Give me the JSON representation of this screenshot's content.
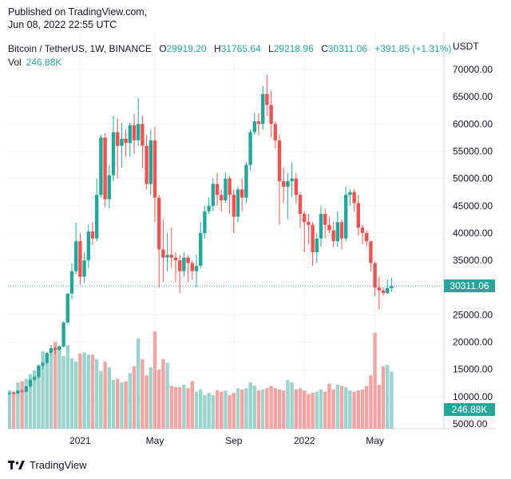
{
  "header": {
    "published": "Published on TradingView.com,",
    "timestamp": "Jun 08, 2022 22:55 UTC"
  },
  "legend": {
    "symbol": "Bitcoin / TetherUS, 1W, BINANCE",
    "o_label": "O",
    "o_value": "29919.20",
    "h_label": "H",
    "h_value": "31765.64",
    "l_label": "L",
    "l_value": "29218.96",
    "c_label": "C",
    "c_value": "30311.06",
    "change": "+391.85 (+1.31%)",
    "vol_label": "Vol",
    "vol_value": "246.88K"
  },
  "axis_unit": "USDT",
  "price_label": "30311.06",
  "volume_label": "246.88K",
  "brand": {
    "name": "TradingView",
    "logo": "tradingview-logo"
  },
  "colors": {
    "up": "#26a69a",
    "down": "#ef5350",
    "vol_up": "#9bd3cd",
    "vol_down": "#f4a5a3"
  },
  "chart_data": {
    "type": "candlestick",
    "interval": "1W",
    "ylim": [
      5000,
      70000
    ],
    "y_ticks": [
      "70000.00",
      "65000.00",
      "60000.00",
      "55000.00",
      "50000.00",
      "45000.00",
      "40000.00",
      "35000.00",
      "30000.00",
      "25000.00",
      "20000.00",
      "15000.00",
      "10000.00",
      "5000.00"
    ],
    "x_ticks": [
      "2021",
      "May",
      "Sep",
      "2022",
      "May"
    ],
    "candles": [
      [
        10500,
        10900,
        10300,
        10700
      ],
      [
        10700,
        11000,
        10400,
        10600
      ],
      [
        10600,
        11200,
        10500,
        11100
      ],
      [
        11100,
        11300,
        10700,
        10900
      ],
      [
        10900,
        12000,
        10800,
        11900
      ],
      [
        11900,
        13300,
        11600,
        13100
      ],
      [
        13100,
        13800,
        12900,
        13600
      ],
      [
        13600,
        15900,
        13400,
        15700
      ],
      [
        15700,
        16400,
        15000,
        16200
      ],
      [
        16200,
        18200,
        15900,
        18000
      ],
      [
        18000,
        19500,
        17600,
        18900
      ],
      [
        18900,
        19300,
        17800,
        18600
      ],
      [
        18600,
        19400,
        18400,
        19200
      ],
      [
        19200,
        23800,
        19000,
        23600
      ],
      [
        23600,
        29000,
        23300,
        28900
      ],
      [
        28900,
        34500,
        27900,
        33000
      ],
      [
        33000,
        41900,
        32500,
        38500
      ],
      [
        38500,
        40000,
        30500,
        32000
      ],
      [
        32000,
        36500,
        30800,
        35000
      ],
      [
        35000,
        41500,
        33500,
        40300
      ],
      [
        40300,
        42000,
        37800,
        39000
      ],
      [
        39000,
        50000,
        38500,
        47000
      ],
      [
        47000,
        58000,
        46500,
        57500
      ],
      [
        57500,
        58300,
        44800,
        46200
      ],
      [
        46200,
        52500,
        44500,
        50600
      ],
      [
        50600,
        61500,
        49500,
        58500
      ],
      [
        58500,
        61000,
        50000,
        56000
      ],
      [
        56000,
        60200,
        52000,
        57300
      ],
      [
        57300,
        59000,
        54000,
        56500
      ],
      [
        56500,
        60300,
        54000,
        59800
      ],
      [
        59800,
        61800,
        54500,
        57000
      ],
      [
        57000,
        64800,
        56000,
        60000
      ],
      [
        60000,
        61500,
        52000,
        56000
      ],
      [
        56000,
        58000,
        48000,
        49000
      ],
      [
        49000,
        59000,
        47000,
        57000
      ],
      [
        57000,
        59500,
        42000,
        46500
      ],
      [
        46500,
        47000,
        30000,
        37000
      ],
      [
        37000,
        42500,
        31000,
        35500
      ],
      [
        35500,
        40000,
        33000,
        36000
      ],
      [
        36000,
        41000,
        33500,
        35500
      ],
      [
        35500,
        36500,
        31000,
        35000
      ],
      [
        35000,
        36000,
        29000,
        33000
      ],
      [
        33000,
        36500,
        32000,
        35500
      ],
      [
        35500,
        36000,
        31000,
        34500
      ],
      [
        34500,
        35000,
        31500,
        33000
      ],
      [
        33000,
        36000,
        30000,
        34000
      ],
      [
        34000,
        42000,
        33500,
        40000
      ],
      [
        40000,
        45000,
        39000,
        44000
      ],
      [
        44000,
        46500,
        43500,
        45000
      ],
      [
        45000,
        50000,
        44000,
        49000
      ],
      [
        49000,
        51000,
        45000,
        47000
      ],
      [
        47000,
        48000,
        44000,
        46000
      ],
      [
        46000,
        51000,
        45500,
        50000
      ],
      [
        50000,
        50500,
        43500,
        47000
      ],
      [
        47000,
        48000,
        40000,
        43000
      ],
      [
        43000,
        48500,
        42000,
        48000
      ],
      [
        48000,
        50000,
        44000,
        46500
      ],
      [
        46500,
        53000,
        45500,
        52500
      ],
      [
        52500,
        59000,
        51500,
        58500
      ],
      [
        58500,
        62000,
        58000,
        60500
      ],
      [
        60500,
        62000,
        58000,
        60000
      ],
      [
        60000,
        67000,
        59000,
        65500
      ],
      [
        65500,
        69000,
        61500,
        63500
      ],
      [
        63500,
        66000,
        57500,
        60000
      ],
      [
        60000,
        60500,
        55500,
        57000
      ],
      [
        57000,
        58000,
        41500,
        49500
      ],
      [
        49500,
        52000,
        45500,
        48500
      ],
      [
        48500,
        51000,
        42500,
        49500
      ],
      [
        49500,
        53000,
        46500,
        50000
      ],
      [
        50000,
        51000,
        45500,
        47000
      ],
      [
        47000,
        47500,
        41000,
        43500
      ],
      [
        43500,
        44000,
        36500,
        42000
      ],
      [
        42000,
        43500,
        38000,
        41500
      ],
      [
        41500,
        42000,
        34000,
        36500
      ],
      [
        36500,
        40000,
        34500,
        39000
      ],
      [
        39000,
        45000,
        37500,
        43500
      ],
      [
        43500,
        44500,
        39000,
        41500
      ],
      [
        41500,
        43000,
        40000,
        40500
      ],
      [
        40500,
        42000,
        37500,
        38500
      ],
      [
        38500,
        44000,
        37500,
        42000
      ],
      [
        42000,
        42500,
        37000,
        39000
      ],
      [
        39000,
        48500,
        38500,
        47000
      ],
      [
        47000,
        48000,
        45000,
        47500
      ],
      [
        47500,
        48000,
        44000,
        45500
      ],
      [
        45500,
        47000,
        39500,
        41000
      ],
      [
        41000,
        41500,
        38000,
        40000
      ],
      [
        40000,
        40500,
        37500,
        38500
      ],
      [
        38500,
        38500,
        33000,
        34500
      ],
      [
        34500,
        34800,
        28500,
        30000
      ],
      [
        30000,
        32000,
        26000,
        29500
      ],
      [
        29500,
        30000,
        28500,
        29000
      ],
      [
        29000,
        31500,
        28800,
        29900
      ],
      [
        29900,
        31766,
        29219,
        30311
      ]
    ],
    "volumes_k": [
      165,
      160,
      200,
      205,
      215,
      235,
      252,
      225,
      335,
      310,
      325,
      375,
      350,
      315,
      360,
      305,
      290,
      325,
      330,
      320,
      320,
      300,
      250,
      290,
      265,
      210,
      215,
      200,
      205,
      240,
      270,
      390,
      300,
      230,
      265,
      420,
      255,
      300,
      285,
      185,
      180,
      180,
      190,
      175,
      205,
      160,
      170,
      145,
      155,
      145,
      165,
      160,
      165,
      145,
      155,
      175,
      170,
      175,
      200,
      185,
      165,
      170,
      175,
      185,
      175,
      170,
      165,
      210,
      200,
      170,
      175,
      165,
      150,
      155,
      160,
      170,
      160,
      195,
      170,
      190,
      185,
      180,
      165,
      160,
      165,
      170,
      185,
      230,
      415,
      190,
      270,
      275,
      246.88
    ],
    "last_price": 30311.06,
    "last_volume_k": 246.88
  }
}
